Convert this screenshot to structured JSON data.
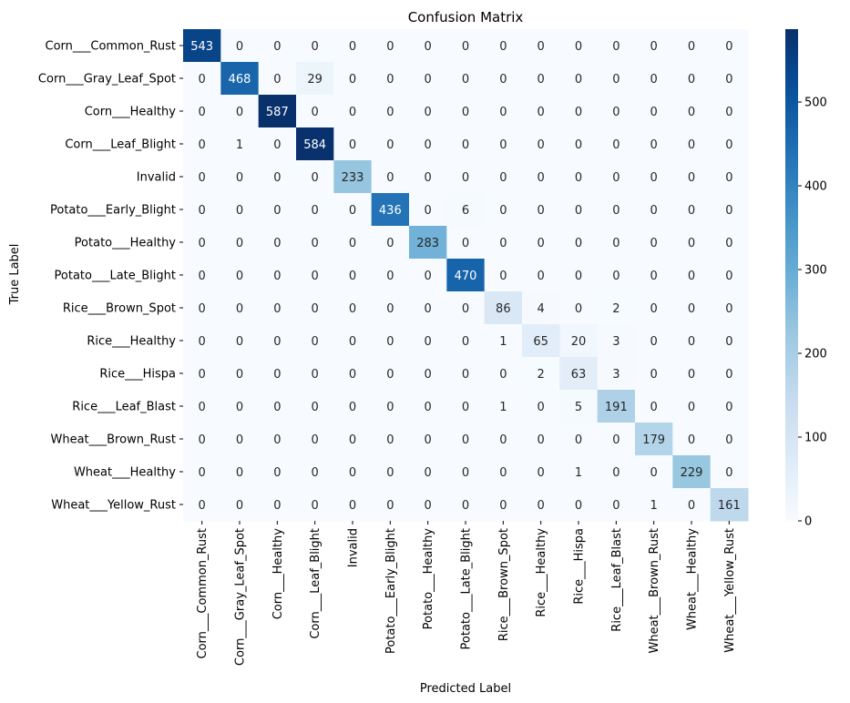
{
  "chart_data": {
    "type": "heatmap",
    "title": "Confusion Matrix",
    "xlabel": "Predicted Label",
    "ylabel": "True Label",
    "labels": [
      "Corn___Common_Rust",
      "Corn___Gray_Leaf_Spot",
      "Corn___Healthy",
      "Corn___Leaf_Blight",
      "Invalid",
      "Potato___Early_Blight",
      "Potato___Healthy",
      "Potato___Late_Blight",
      "Rice___Brown_Spot",
      "Rice___Healthy",
      "Rice___Hispa",
      "Rice___Leaf_Blast",
      "Wheat___Brown_Rust",
      "Wheat___Healthy",
      "Wheat___Yellow_Rust"
    ],
    "matrix": [
      [
        543,
        0,
        0,
        0,
        0,
        0,
        0,
        0,
        0,
        0,
        0,
        0,
        0,
        0,
        0
      ],
      [
        0,
        468,
        0,
        29,
        0,
        0,
        0,
        0,
        0,
        0,
        0,
        0,
        0,
        0,
        0
      ],
      [
        0,
        0,
        587,
        0,
        0,
        0,
        0,
        0,
        0,
        0,
        0,
        0,
        0,
        0,
        0
      ],
      [
        0,
        1,
        0,
        584,
        0,
        0,
        0,
        0,
        0,
        0,
        0,
        0,
        0,
        0,
        0
      ],
      [
        0,
        0,
        0,
        0,
        233,
        0,
        0,
        0,
        0,
        0,
        0,
        0,
        0,
        0,
        0
      ],
      [
        0,
        0,
        0,
        0,
        0,
        436,
        0,
        6,
        0,
        0,
        0,
        0,
        0,
        0,
        0
      ],
      [
        0,
        0,
        0,
        0,
        0,
        0,
        283,
        0,
        0,
        0,
        0,
        0,
        0,
        0,
        0
      ],
      [
        0,
        0,
        0,
        0,
        0,
        0,
        0,
        470,
        0,
        0,
        0,
        0,
        0,
        0,
        0
      ],
      [
        0,
        0,
        0,
        0,
        0,
        0,
        0,
        0,
        86,
        4,
        0,
        2,
        0,
        0,
        0
      ],
      [
        0,
        0,
        0,
        0,
        0,
        0,
        0,
        0,
        1,
        65,
        20,
        3,
        0,
        0,
        0
      ],
      [
        0,
        0,
        0,
        0,
        0,
        0,
        0,
        0,
        0,
        2,
        63,
        3,
        0,
        0,
        0
      ],
      [
        0,
        0,
        0,
        0,
        0,
        0,
        0,
        0,
        1,
        0,
        5,
        191,
        0,
        0,
        0
      ],
      [
        0,
        0,
        0,
        0,
        0,
        0,
        0,
        0,
        0,
        0,
        0,
        0,
        179,
        0,
        0
      ],
      [
        0,
        0,
        0,
        0,
        0,
        0,
        0,
        0,
        0,
        0,
        1,
        0,
        0,
        229,
        0
      ],
      [
        0,
        0,
        0,
        0,
        0,
        0,
        0,
        0,
        0,
        0,
        0,
        0,
        1,
        0,
        161
      ]
    ],
    "colormap": "Blues",
    "vmin": 0,
    "vmax": 587,
    "colorbar_ticks": [
      0,
      100,
      200,
      300,
      400,
      500
    ],
    "annotated": true
  }
}
